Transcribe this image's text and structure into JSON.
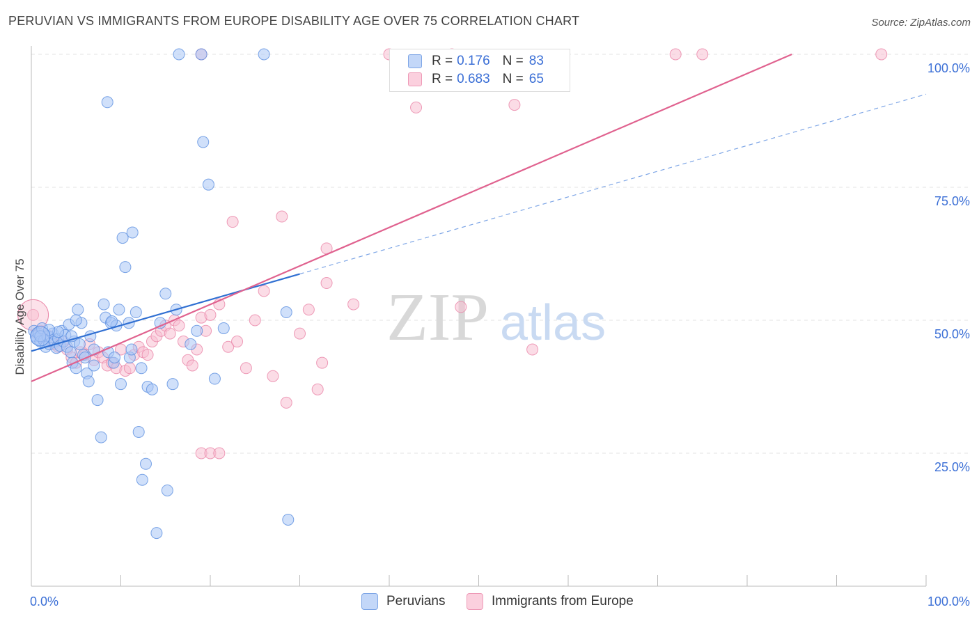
{
  "title": "PERUVIAN VS IMMIGRANTS FROM EUROPE DISABILITY AGE OVER 75 CORRELATION CHART",
  "source": "Source: ZipAtlas.com",
  "watermark": {
    "zip": "ZIP",
    "atlas": "atlas"
  },
  "colors": {
    "blue_fill": "#a9c6f5",
    "blue_stroke": "#5b8fe0",
    "blue_line": "#2f6fd2",
    "pink_fill": "#f8bfd1",
    "pink_stroke": "#ea85a7",
    "pink_line": "#e0628f",
    "axis_text": "#3b6fd6",
    "grid": "#e3e3e3"
  },
  "legend": [
    {
      "series": "Peruvians",
      "r_label": "R =",
      "r_value": "0.176",
      "n_label": "N =",
      "n_value": "83",
      "color": "#a9c6f5"
    },
    {
      "series": "Immigrants from Europe",
      "r_label": "R =",
      "r_value": "0.683",
      "n_label": "N =",
      "n_value": "65",
      "color": "#f8bfd1"
    }
  ],
  "chart_data": {
    "type": "scatter",
    "title": "PERUVIAN VS IMMIGRANTS FROM EUROPE DISABILITY AGE OVER 75 CORRELATION CHART",
    "ylabel": "Disability Age Over 75",
    "xlabel": "",
    "xlim": [
      0,
      100
    ],
    "ylim": [
      0,
      100
    ],
    "x_tick_labels": [
      "0.0%",
      "100.0%"
    ],
    "y_tick_labels": [
      "25.0%",
      "50.0%",
      "75.0%",
      "100.0%"
    ],
    "grid": true,
    "legend_position": "bottom-center",
    "series": [
      {
        "name": "Peruvians",
        "color": "#a9c6f5",
        "trend": {
          "x": [
            0,
            30
          ],
          "y": [
            44.2,
            58.7
          ],
          "extended": {
            "x": [
              30,
              100
            ],
            "y": [
              58.7,
              92.5
            ]
          }
        },
        "points": [
          [
            0.3,
            48.0
          ],
          [
            0.5,
            47.0
          ],
          [
            0.6,
            46.5
          ],
          [
            0.8,
            47.5
          ],
          [
            1.0,
            46.0
          ],
          [
            1.2,
            48.5
          ],
          [
            1.4,
            46.2
          ],
          [
            1.6,
            45.0
          ],
          [
            1.8,
            47.0
          ],
          [
            2.0,
            45.5
          ],
          [
            2.2,
            46.8
          ],
          [
            2.4,
            47.5
          ],
          [
            2.6,
            46.0
          ],
          [
            2.8,
            44.8
          ],
          [
            3.0,
            46.5
          ],
          [
            3.2,
            45.2
          ],
          [
            3.4,
            48.0
          ],
          [
            3.6,
            46.0
          ],
          [
            3.8,
            47.2
          ],
          [
            4.0,
            45.0
          ],
          [
            4.2,
            49.2
          ],
          [
            4.4,
            44.0
          ],
          [
            4.6,
            42.0
          ],
          [
            4.8,
            46.0
          ],
          [
            5.0,
            41.0
          ],
          [
            5.2,
            52.0
          ],
          [
            5.4,
            45.5
          ],
          [
            5.6,
            49.5
          ],
          [
            5.8,
            43.5
          ],
          [
            6.2,
            40.0
          ],
          [
            6.6,
            47.0
          ],
          [
            7.0,
            44.5
          ],
          [
            7.4,
            35.0
          ],
          [
            7.8,
            28.0
          ],
          [
            8.1,
            53.0
          ],
          [
            8.3,
            50.5
          ],
          [
            8.6,
            44.0
          ],
          [
            8.9,
            49.5
          ],
          [
            9.2,
            42.0
          ],
          [
            9.5,
            49.0
          ],
          [
            9.8,
            52.0
          ],
          [
            10.2,
            65.5
          ],
          [
            10.5,
            60.0
          ],
          [
            10.9,
            49.5
          ],
          [
            11.3,
            66.5
          ],
          [
            11.7,
            51.5
          ],
          [
            12.0,
            29.0
          ],
          [
            12.4,
            20.0
          ],
          [
            8.5,
            91.0
          ],
          [
            9.3,
            43.0
          ],
          [
            10.0,
            38.0
          ],
          [
            11.0,
            43.0
          ],
          [
            12.3,
            41.0
          ],
          [
            12.8,
            23.0
          ],
          [
            13.0,
            37.5
          ],
          [
            13.5,
            37.0
          ],
          [
            14.0,
            10.0
          ],
          [
            14.4,
            49.5
          ],
          [
            15.2,
            18.0
          ],
          [
            15.8,
            38.0
          ],
          [
            15.0,
            55.0
          ],
          [
            16.2,
            52.0
          ],
          [
            17.8,
            45.5
          ],
          [
            18.5,
            48.0
          ],
          [
            19.0,
            100.0
          ],
          [
            19.2,
            83.5
          ],
          [
            19.8,
            75.5
          ],
          [
            20.5,
            39.0
          ],
          [
            21.5,
            48.5
          ],
          [
            16.5,
            100.0
          ],
          [
            26.0,
            100.0
          ],
          [
            28.5,
            51.5
          ],
          [
            28.7,
            12.5
          ],
          [
            6.4,
            38.5
          ],
          [
            5.0,
            50.0
          ],
          [
            3.0,
            47.8
          ],
          [
            1.0,
            47.0
          ],
          [
            2.0,
            48.2
          ],
          [
            4.5,
            47.0
          ],
          [
            6.0,
            43.0
          ],
          [
            7.0,
            41.5
          ],
          [
            9.0,
            49.8
          ],
          [
            11.2,
            44.5
          ]
        ]
      },
      {
        "name": "Immigrants from Europe",
        "color": "#f8bfd1",
        "trend": {
          "x": [
            0,
            85
          ],
          "y": [
            38.5,
            100.0
          ]
        },
        "points": [
          [
            0.2,
            51.0
          ],
          [
            0.6,
            47.5
          ],
          [
            1.0,
            48.0
          ],
          [
            1.5,
            46.5
          ],
          [
            2.0,
            47.0
          ],
          [
            2.5,
            45.5
          ],
          [
            3.0,
            45.0
          ],
          [
            3.5,
            46.0
          ],
          [
            4.0,
            44.5
          ],
          [
            4.5,
            43.0
          ],
          [
            5.0,
            42.0
          ],
          [
            5.5,
            44.0
          ],
          [
            6.0,
            43.5
          ],
          [
            6.5,
            45.5
          ],
          [
            7.0,
            42.5
          ],
          [
            7.5,
            44.0
          ],
          [
            8.0,
            43.0
          ],
          [
            8.5,
            41.5
          ],
          [
            9.0,
            42.0
          ],
          [
            9.5,
            41.0
          ],
          [
            10.0,
            44.5
          ],
          [
            10.5,
            40.5
          ],
          [
            11.0,
            41.0
          ],
          [
            11.5,
            43.5
          ],
          [
            12.0,
            45.0
          ],
          [
            12.5,
            44.0
          ],
          [
            13.0,
            43.5
          ],
          [
            13.5,
            46.0
          ],
          [
            14.0,
            47.0
          ],
          [
            14.5,
            48.0
          ],
          [
            15.0,
            49.0
          ],
          [
            15.5,
            47.5
          ],
          [
            16.0,
            50.0
          ],
          [
            16.5,
            49.0
          ],
          [
            17.0,
            46.0
          ],
          [
            17.5,
            42.5
          ],
          [
            18.0,
            41.5
          ],
          [
            18.5,
            44.5
          ],
          [
            19.0,
            50.5
          ],
          [
            19.5,
            48.0
          ],
          [
            20.0,
            51.0
          ],
          [
            21.0,
            53.0
          ],
          [
            22.0,
            45.0
          ],
          [
            23.0,
            46.0
          ],
          [
            24.0,
            41.0
          ],
          [
            25.0,
            50.0
          ],
          [
            26.0,
            55.5
          ],
          [
            27.0,
            39.5
          ],
          [
            28.0,
            69.5
          ],
          [
            28.5,
            34.5
          ],
          [
            30.0,
            47.5
          ],
          [
            31.0,
            52.0
          ],
          [
            32.0,
            37.0
          ],
          [
            32.5,
            42.0
          ],
          [
            33.0,
            57.0
          ],
          [
            22.5,
            68.5
          ],
          [
            19.0,
            25.0
          ],
          [
            20.0,
            25.0
          ],
          [
            21.0,
            25.0
          ],
          [
            33.0,
            63.5
          ],
          [
            36.0,
            53.0
          ],
          [
            43.0,
            90.0
          ],
          [
            48.0,
            52.5
          ],
          [
            54.0,
            90.5
          ],
          [
            56.0,
            44.5
          ]
        ],
        "top_points": [
          [
            19.0,
            100.0
          ],
          [
            40.0,
            100.0
          ],
          [
            47.0,
            100.0
          ],
          [
            72.0,
            100.0
          ],
          [
            75.0,
            100.0
          ],
          [
            95.0,
            100.0
          ]
        ]
      }
    ]
  }
}
